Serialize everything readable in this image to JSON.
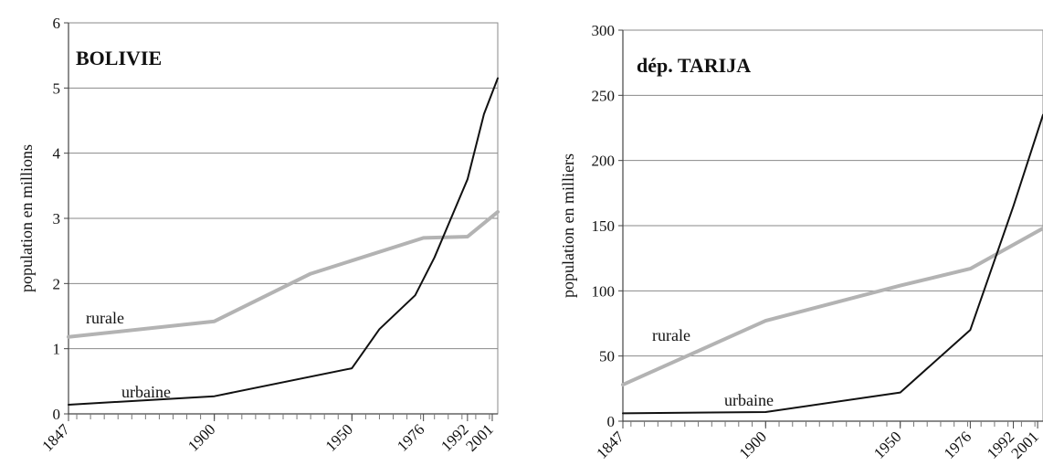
{
  "chart_data": [
    {
      "type": "line",
      "title": "BOLIVIE",
      "xlabel": "",
      "ylabel": "population en millions",
      "xlim": [
        1847,
        2003
      ],
      "ylim": [
        0,
        6
      ],
      "yticks": [
        0,
        1,
        2,
        3,
        4,
        5,
        6
      ],
      "xtick_labels": [
        "1847",
        "1900",
        "1950",
        "1976",
        "1992",
        "2001"
      ],
      "xtick_values": [
        1847,
        1900,
        1950,
        1976,
        1992,
        2001
      ],
      "grid": true,
      "series": [
        {
          "name": "rurale",
          "color": "#b3b3b3",
          "points": [
            [
              1847,
              1.18
            ],
            [
              1900,
              1.42
            ],
            [
              1935,
              2.15
            ],
            [
              1976,
              2.7
            ],
            [
              1992,
              2.72
            ],
            [
              2003,
              3.1
            ]
          ]
        },
        {
          "name": "urbaine",
          "color": "#111111",
          "points": [
            [
              1847,
              0.14
            ],
            [
              1900,
              0.27
            ],
            [
              1950,
              0.7
            ],
            [
              1960,
              1.3
            ],
            [
              1973,
              1.82
            ],
            [
              1980,
              2.4
            ],
            [
              1992,
              3.6
            ],
            [
              1998,
              4.6
            ],
            [
              2003,
              5.15
            ]
          ]
        }
      ]
    },
    {
      "type": "line",
      "title": "dép. TARIJA",
      "xlabel": "",
      "ylabel": "population en milliers",
      "xlim": [
        1847,
        2003
      ],
      "ylim": [
        0,
        300
      ],
      "yticks": [
        0,
        50,
        100,
        150,
        200,
        250,
        300
      ],
      "xtick_labels": [
        "1847",
        "1900",
        "1950",
        "1976",
        "1992",
        "2001"
      ],
      "xtick_values": [
        1847,
        1900,
        1950,
        1976,
        1992,
        2001
      ],
      "grid": true,
      "series": [
        {
          "name": "rurale",
          "color": "#b3b3b3",
          "points": [
            [
              1847,
              28
            ],
            [
              1900,
              77
            ],
            [
              1950,
              104
            ],
            [
              1976,
              117
            ],
            [
              2003,
              148
            ]
          ]
        },
        {
          "name": "urbaine",
          "color": "#111111",
          "points": [
            [
              1847,
              6
            ],
            [
              1900,
              7
            ],
            [
              1950,
              22
            ],
            [
              1976,
              70
            ],
            [
              1992,
              165
            ],
            [
              2003,
              235
            ]
          ]
        }
      ]
    }
  ]
}
